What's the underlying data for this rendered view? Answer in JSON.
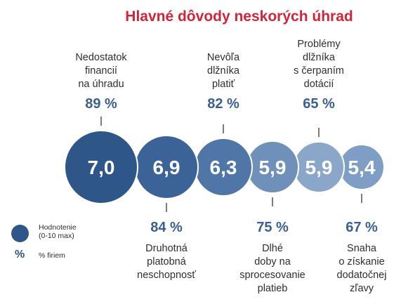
{
  "chart_data": {
    "type": "bubble",
    "title": "Hlavné dôvody neskorých úhrad",
    "bubbles": [
      {
        "rating": "7,0",
        "percent": "89 %",
        "label": [
          "Nedostatok",
          "financií",
          "na úhradu"
        ],
        "color": "#2f5688",
        "label_position": "top"
      },
      {
        "rating": "6,9",
        "percent": "84 %",
        "label": [
          "Druhotná",
          "platobná",
          "neschopnosť"
        ],
        "color": "#3c6397",
        "label_position": "bottom"
      },
      {
        "rating": "6,3",
        "percent": "82 %",
        "label": [
          "Nevôľa",
          "dlžníka",
          "platiť"
        ],
        "color": "#4f76a6",
        "label_position": "top"
      },
      {
        "rating": "5,9",
        "percent": "75 %",
        "label": [
          "Dlhé",
          "doby na",
          "sprocesovanie",
          "platieb"
        ],
        "color": "#6f90b8",
        "label_position": "bottom"
      },
      {
        "rating": "5,9",
        "percent": "65 %",
        "label": [
          "Problémy",
          "dlžníka",
          "s čerpaním",
          "dotácií"
        ],
        "color": "#8aa7c9",
        "label_position": "top"
      },
      {
        "rating": "5,4",
        "percent": "67 %",
        "label": [
          "Snaha",
          "o získanie",
          "dodatočnej",
          "zľavy"
        ],
        "color": "#7f9ec5",
        "label_position": "bottom"
      }
    ]
  },
  "legend": {
    "rating_label_line1": "Hodnotenie",
    "rating_label_line2": "(0-10 max)",
    "percent_symbol": "%",
    "percent_label": "% firiem"
  }
}
